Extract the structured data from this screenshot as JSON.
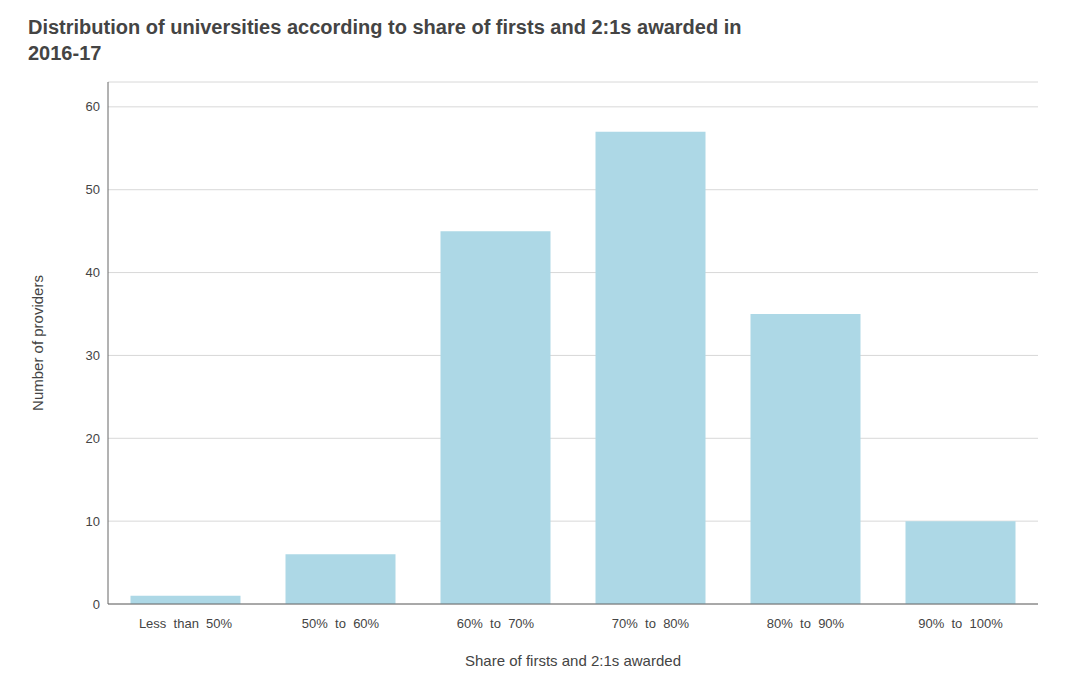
{
  "chart_data": {
    "type": "bar",
    "title": "Distribution of universities according to share of firsts and 2:1s awarded in\n2016-17",
    "xlabel": "Share of firsts and 2:1s awarded",
    "ylabel": "Number of providers",
    "categories": [
      "Less  than  50%",
      "50%  to  60%",
      "60%  to  70%",
      "70%  to  80%",
      "80%  to  90%",
      "90%  to  100%"
    ],
    "values": [
      1,
      6,
      45,
      57,
      35,
      10
    ],
    "color": "#add8e6",
    "ylim": [
      0,
      63
    ],
    "yticks": [
      0,
      10,
      20,
      30,
      40,
      50,
      60
    ],
    "grid": true
  }
}
